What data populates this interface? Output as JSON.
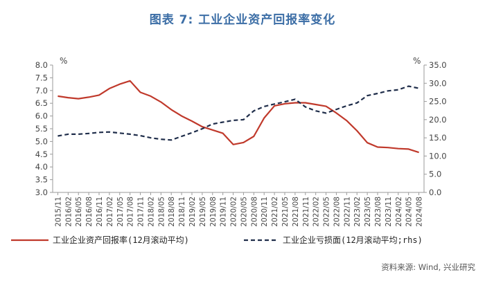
{
  "title": "图表 7:  工业企业资产回报率变化",
  "source": "资料来源: Wind, 兴业研究",
  "colors": {
    "title": "#3c6ea6",
    "return_line": "#c0392b",
    "loss_line": "#1f2d4a",
    "grid": "#dcdcdc"
  },
  "chart_data": {
    "type": "line",
    "left_unit": "%",
    "right_unit": "%",
    "x": [
      "2015/11",
      "2016/02",
      "2016/05",
      "2016/08",
      "2016/11",
      "2017/02",
      "2017/05",
      "2017/08",
      "2017/11",
      "2018/02",
      "2018/05",
      "2018/08",
      "2018/11",
      "2019/02",
      "2019/05",
      "2019/08",
      "2019/11",
      "2020/02",
      "2020/05",
      "2020/08",
      "2020/11",
      "2021/02",
      "2021/05",
      "2021/08",
      "2021/11",
      "2022/02",
      "2022/05",
      "2022/08",
      "2022/11",
      "2023/02",
      "2023/05",
      "2023/08",
      "2023/11",
      "2024/02",
      "2024/05",
      "2024/08"
    ],
    "x_tick_labels": [
      "2015/11",
      "2016/02",
      "2016/05",
      "2016/08",
      "2016/11",
      "2017/02",
      "2017/05",
      "2017/08",
      "2017/11",
      "2018/02",
      "2018/05",
      "2018/08",
      "2018/11",
      "2019/02",
      "2019/05",
      "2019/08",
      "2019/11",
      "2020/02",
      "2020/05",
      "2020/08",
      "2020/11",
      "2021/02",
      "2021/05",
      "2021/08",
      "2021/11",
      "2022/02",
      "2022/05",
      "2022/08",
      "2022/11",
      "2023/02",
      "2023/05",
      "2023/08",
      "2023/11",
      "2024/02",
      "2024/05",
      "2024/08"
    ],
    "y_left": {
      "min": 3.0,
      "max": 8.0,
      "ticks": [
        "3.0",
        "3.5",
        "4.0",
        "4.5",
        "5.0",
        "5.5",
        "6.0",
        "6.5",
        "7.0",
        "7.5",
        "8.0"
      ]
    },
    "y_right": {
      "min": 0.0,
      "max": 35.0,
      "ticks": [
        "0.0",
        "5.0",
        "10.0",
        "15.0",
        "20.0",
        "25.0",
        "30.0",
        "35.0"
      ]
    },
    "grid": false,
    "legend_position": "bottom",
    "series": [
      {
        "name": "工业企业资产回报率(12月滚动平均)",
        "axis": "left",
        "style": "solid",
        "values": [
          6.78,
          6.72,
          6.68,
          6.74,
          6.82,
          7.08,
          7.25,
          7.38,
          6.93,
          6.78,
          6.55,
          6.25,
          6.0,
          5.8,
          5.58,
          5.45,
          5.32,
          4.88,
          4.96,
          5.2,
          5.92,
          6.4,
          6.48,
          6.52,
          6.52,
          6.45,
          6.38,
          6.12,
          5.82,
          5.42,
          4.95,
          4.78,
          4.76,
          4.72,
          4.7,
          4.57
        ]
      },
      {
        "name": "工业企业亏损面(12月滚动平均;rhs)",
        "axis": "right",
        "style": "dashed",
        "values": [
          15.5,
          16.0,
          16.0,
          16.2,
          16.5,
          16.6,
          16.3,
          16.0,
          15.6,
          15.0,
          14.6,
          14.4,
          15.4,
          16.4,
          17.5,
          18.8,
          19.3,
          19.8,
          20.0,
          22.4,
          23.6,
          24.3,
          24.9,
          25.6,
          23.5,
          22.4,
          21.8,
          22.8,
          23.8,
          24.6,
          26.6,
          27.2,
          27.9,
          28.2,
          29.2,
          28.6
        ]
      }
    ]
  }
}
